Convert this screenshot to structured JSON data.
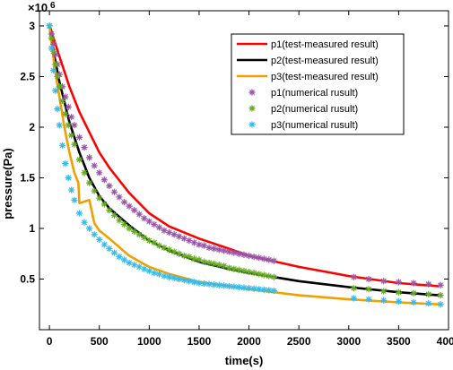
{
  "chart_data": {
    "type": "line",
    "xlabel": "time(s)",
    "ylabel": "pressure(Pa)",
    "y_multiplier_label": "×10",
    "y_multiplier_exponent": "6",
    "xlim": [
      -100,
      4000
    ],
    "ylim": [
      0,
      3.15
    ],
    "xticks": [
      0,
      500,
      1000,
      1500,
      2000,
      2500,
      3000,
      3500,
      4000
    ],
    "yticks": [
      0.5,
      1,
      1.5,
      2,
      2.5,
      3
    ],
    "xtick_labels": [
      "0",
      "500",
      "1000",
      "1500",
      "2000",
      "2500",
      "3000",
      "3500",
      "4000"
    ],
    "ytick_labels": [
      "0.5",
      "1",
      "1.5",
      "2",
      "2.5",
      "3"
    ],
    "grid": false,
    "legend_position": "top-right",
    "series": [
      {
        "name": "p1(test-measured result)",
        "style": "line",
        "color": "#ff0000",
        "x": [
          0,
          20,
          50,
          100,
          150,
          200,
          300,
          400,
          500,
          600,
          800,
          1000,
          1200,
          1500,
          1800,
          2000,
          2500,
          3000,
          3500,
          3900
        ],
        "y": [
          3.0,
          2.95,
          2.85,
          2.7,
          2.55,
          2.4,
          2.15,
          1.95,
          1.75,
          1.6,
          1.35,
          1.15,
          1.02,
          0.9,
          0.8,
          0.73,
          0.62,
          0.53,
          0.46,
          0.43
        ]
      },
      {
        "name": "p2(test-measured result)",
        "style": "line",
        "color": "#000000",
        "x": [
          0,
          20,
          50,
          100,
          150,
          200,
          300,
          400,
          500,
          600,
          800,
          1000,
          1200,
          1500,
          1800,
          2000,
          2500,
          3000,
          3500,
          3900
        ],
        "y": [
          3.0,
          2.9,
          2.7,
          2.45,
          2.25,
          2.05,
          1.75,
          1.5,
          1.32,
          1.2,
          1.03,
          0.88,
          0.78,
          0.67,
          0.6,
          0.56,
          0.48,
          0.42,
          0.37,
          0.34
        ]
      },
      {
        "name": "p3(test-measured result)",
        "style": "line",
        "color": "#f0a000",
        "x": [
          0,
          20,
          50,
          100,
          150,
          200,
          250,
          290,
          300,
          400,
          450,
          500,
          600,
          800,
          1000,
          1200,
          1500,
          1800,
          2000,
          2500,
          3000,
          3500,
          3900
        ],
        "y": [
          3.0,
          2.85,
          2.6,
          2.3,
          2.0,
          1.75,
          1.55,
          1.45,
          1.25,
          1.28,
          1.05,
          0.98,
          0.9,
          0.73,
          0.62,
          0.55,
          0.47,
          0.43,
          0.4,
          0.34,
          0.3,
          0.27,
          0.25
        ]
      },
      {
        "name": "p1(numerical rusult)",
        "style": "marker",
        "color": "#9955aa",
        "x": [
          0,
          20,
          40,
          60,
          80,
          100,
          130,
          160,
          190,
          220,
          250,
          300,
          350,
          400,
          450,
          500,
          550,
          600,
          650,
          700,
          750,
          800,
          850,
          900,
          950,
          1000,
          1050,
          1100,
          1150,
          1200,
          1250,
          1300,
          1350,
          1400,
          1450,
          1500,
          1550,
          1600,
          1650,
          1700,
          1750,
          1800,
          1850,
          1900,
          1950,
          2000,
          2050,
          2100,
          2150,
          2200,
          2250,
          3050,
          3200,
          3350,
          3500,
          3650,
          3800,
          3920
        ],
        "y": [
          3.0,
          2.92,
          2.82,
          2.72,
          2.62,
          2.52,
          2.4,
          2.3,
          2.2,
          2.1,
          2.02,
          1.9,
          1.8,
          1.7,
          1.62,
          1.55,
          1.48,
          1.42,
          1.36,
          1.31,
          1.26,
          1.22,
          1.18,
          1.14,
          1.1,
          1.07,
          1.04,
          1.01,
          0.98,
          0.96,
          0.94,
          0.92,
          0.9,
          0.88,
          0.86,
          0.84,
          0.83,
          0.81,
          0.8,
          0.79,
          0.78,
          0.77,
          0.76,
          0.75,
          0.74,
          0.73,
          0.72,
          0.71,
          0.7,
          0.69,
          0.68,
          0.52,
          0.5,
          0.48,
          0.47,
          0.46,
          0.45,
          0.44
        ]
      },
      {
        "name": "p2(numerical rusult)",
        "style": "marker",
        "color": "#66aa22",
        "x": [
          0,
          20,
          40,
          60,
          80,
          100,
          130,
          160,
          190,
          220,
          250,
          300,
          350,
          400,
          450,
          500,
          550,
          600,
          650,
          700,
          750,
          800,
          850,
          900,
          950,
          1000,
          1050,
          1100,
          1150,
          1200,
          1250,
          1300,
          1350,
          1400,
          1450,
          1500,
          1550,
          1600,
          1650,
          1700,
          1750,
          1800,
          1850,
          1900,
          1950,
          2000,
          2050,
          2100,
          2150,
          2200,
          2250,
          3050,
          3200,
          3350,
          3500,
          3650,
          3800,
          3920
        ],
        "y": [
          3.0,
          2.88,
          2.75,
          2.62,
          2.5,
          2.4,
          2.26,
          2.13,
          2.02,
          1.92,
          1.83,
          1.68,
          1.55,
          1.45,
          1.37,
          1.3,
          1.24,
          1.18,
          1.13,
          1.08,
          1.04,
          1.0,
          0.97,
          0.94,
          0.91,
          0.88,
          0.86,
          0.83,
          0.81,
          0.79,
          0.77,
          0.75,
          0.73,
          0.72,
          0.7,
          0.69,
          0.67,
          0.66,
          0.65,
          0.64,
          0.63,
          0.61,
          0.6,
          0.59,
          0.58,
          0.57,
          0.56,
          0.55,
          0.54,
          0.53,
          0.52,
          0.41,
          0.4,
          0.38,
          0.37,
          0.36,
          0.35,
          0.34
        ]
      },
      {
        "name": "p3(numerical rusult)",
        "style": "marker",
        "color": "#33bbee",
        "x": [
          0,
          20,
          40,
          60,
          80,
          100,
          130,
          160,
          190,
          220,
          250,
          300,
          350,
          400,
          450,
          500,
          550,
          600,
          650,
          700,
          750,
          800,
          850,
          900,
          950,
          1000,
          1050,
          1100,
          1150,
          1200,
          1250,
          1300,
          1350,
          1400,
          1450,
          1500,
          1550,
          1600,
          1650,
          1700,
          1750,
          1800,
          1850,
          1900,
          1950,
          2000,
          2050,
          2100,
          2150,
          2200,
          2250,
          3050,
          3200,
          3350,
          3500,
          3650,
          3800,
          3920
        ],
        "y": [
          3.0,
          2.78,
          2.56,
          2.36,
          2.18,
          2.02,
          1.82,
          1.64,
          1.5,
          1.38,
          1.28,
          1.15,
          1.06,
          1.0,
          0.94,
          0.89,
          0.84,
          0.8,
          0.76,
          0.72,
          0.69,
          0.66,
          0.64,
          0.62,
          0.6,
          0.58,
          0.56,
          0.55,
          0.53,
          0.52,
          0.51,
          0.5,
          0.49,
          0.48,
          0.47,
          0.46,
          0.455,
          0.45,
          0.445,
          0.44,
          0.435,
          0.43,
          0.425,
          0.42,
          0.415,
          0.41,
          0.405,
          0.4,
          0.395,
          0.39,
          0.385,
          0.31,
          0.3,
          0.29,
          0.28,
          0.27,
          0.26,
          0.25
        ]
      }
    ]
  }
}
